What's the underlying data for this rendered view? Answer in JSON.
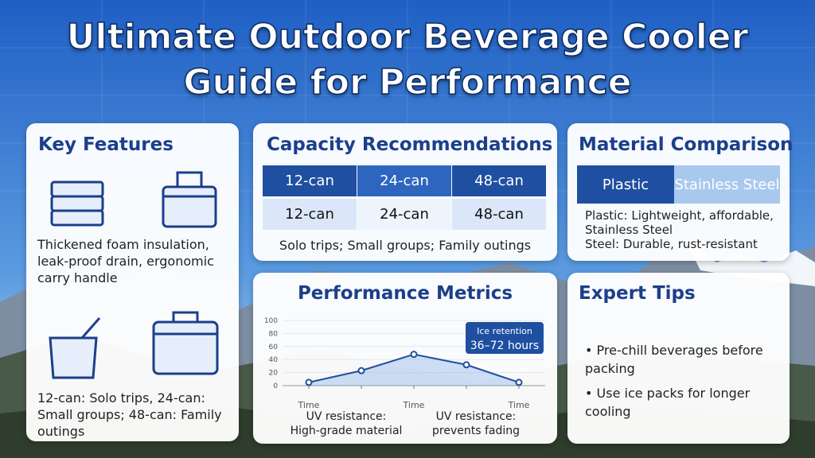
{
  "header": {
    "title_line1": "Ultimate Outdoor Beverage Cooler",
    "title_line2": "Guide for Performance"
  },
  "key_features": {
    "title": "Key Features",
    "text1": "Thickened foam insulation, leak-proof drain, ergonomic carry handle",
    "text2": "12-can: Solo trips, 24-can: Small groups; 48-can: Family outings"
  },
  "capacity": {
    "title": "Capacity Recommendations",
    "table": {
      "rows": [
        [
          "12-can",
          "24-can",
          "48-can"
        ],
        [
          "12-can",
          "24-can",
          "48-can"
        ]
      ]
    },
    "caption": "Solo trips; Small groups; Family outings"
  },
  "material": {
    "title": "Material Comparison",
    "headers": [
      "Plastic",
      "Stainless Steel"
    ],
    "lines": [
      "Plastic: Lightweight, affordable,",
      "Stainless Steel",
      "Steel: Durable, rust-resistant"
    ]
  },
  "chart_data": {
    "type": "line",
    "title": "Performance Metrics",
    "categories": [
      "Time",
      null,
      "Time",
      null,
      "Time"
    ],
    "values": [
      5,
      23,
      48,
      32,
      5
    ],
    "color": "#1f4fa0",
    "ylim": [
      0,
      100
    ],
    "yticks": [
      0,
      20,
      40,
      60,
      80,
      100
    ],
    "grid": true,
    "annotation": {
      "line1": "Ice retention",
      "line2": "36–72 hours"
    },
    "notes": [
      "UV resistance: High-grade material",
      "UV resistance: prevents fading"
    ]
  },
  "tips": {
    "title": "Expert Tips",
    "items": [
      "Pre-chill beverages before packing",
      "Use ice packs for longer cooling"
    ]
  }
}
